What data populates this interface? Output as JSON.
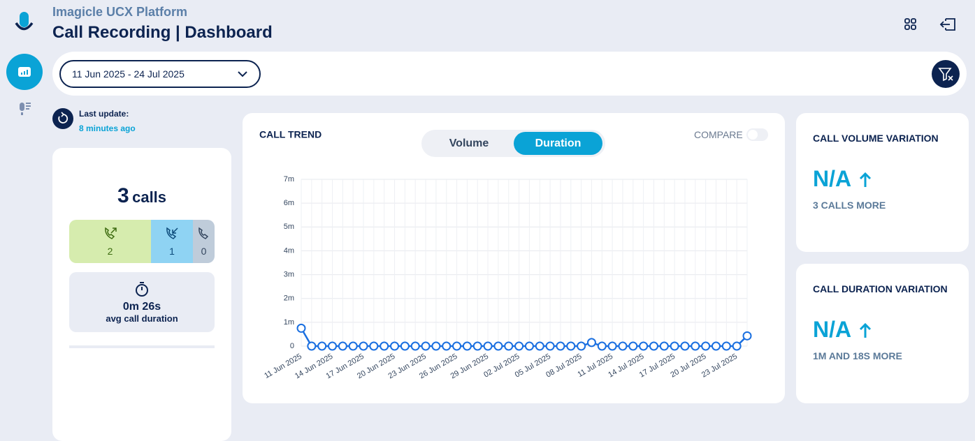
{
  "header": {
    "platform": "Imagicle UCX Platform",
    "title": "Call Recording | Dashboard"
  },
  "filter": {
    "date_range": "11 Jun 2025 - 24 Jul 2025"
  },
  "last_update": {
    "label": "Last update:",
    "value": "8 minutes ago"
  },
  "summary": {
    "count": 3,
    "unit": "calls",
    "outgoing": 2,
    "incoming": 1,
    "unknown": 0,
    "avg_duration": "0m 26s",
    "avg_label": "avg call duration"
  },
  "trend_card": {
    "toggle": [
      "Volume",
      "Duration"
    ],
    "compare": "COMPARE"
  },
  "chart_data": {
    "type": "line",
    "title": "CALL TREND",
    "categories": [
      "11 Jun 2025",
      null,
      null,
      "14 Jun 2025",
      null,
      null,
      "17 Jun 2025",
      null,
      null,
      "20 Jun 2025",
      null,
      null,
      "23 Jun 2025",
      null,
      null,
      "26 Jun 2025",
      null,
      null,
      "29 Jun 2025",
      null,
      null,
      "02 Jul 2025",
      null,
      null,
      "05 Jul 2025",
      null,
      null,
      "08 Jul 2025",
      null,
      null,
      "11 Jul 2025",
      null,
      null,
      "14 Jul 2025",
      null,
      null,
      "17 Jul 2025",
      null,
      null,
      "20 Jul 2025",
      null,
      null,
      "23 Jul 2025",
      null
    ],
    "values": [
      0.75,
      0,
      0,
      0,
      0,
      0,
      0,
      0,
      0,
      0,
      0,
      0,
      0,
      0,
      0,
      0,
      0,
      0,
      0,
      0,
      0,
      0,
      0,
      0,
      0,
      0,
      0,
      0,
      0.15,
      0,
      0,
      0,
      0,
      0,
      0,
      0,
      0,
      0,
      0,
      0,
      0,
      0,
      0,
      0.43
    ],
    "color": "#1a6fe0",
    "ylim": [
      0,
      7
    ],
    "yticks": [
      0,
      {
        "value": 1,
        "label": "1m"
      },
      {
        "value": 2,
        "label": "2m"
      },
      {
        "value": 3,
        "label": "3m"
      },
      {
        "value": 4,
        "label": "4m"
      },
      {
        "value": 5,
        "label": "5m"
      },
      {
        "value": 6,
        "label": "6m"
      },
      {
        "value": 7,
        "label": "7m"
      }
    ],
    "grid": true
  },
  "variations": [
    {
      "title": "CALL VOLUME VARIATION",
      "value": "N/A",
      "note": "3 CALLS MORE"
    },
    {
      "title": "CALL DURATION VARIATION",
      "value": "N/A",
      "note": "1M AND 18S MORE"
    }
  ]
}
